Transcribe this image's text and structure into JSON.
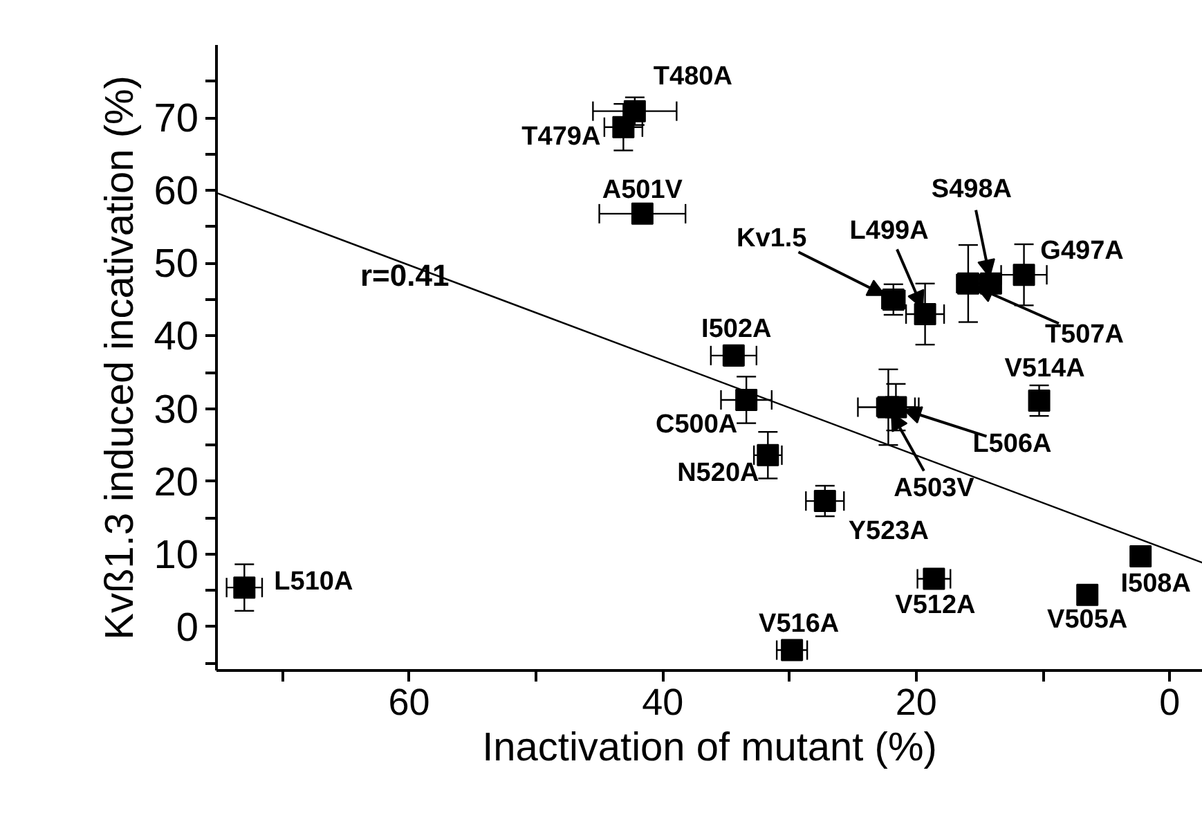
{
  "chart_data": {
    "type": "scatter",
    "xlabel": "Inactivation of mutant (%)",
    "ylabel": "Kvß1.3 induced incativation (%)",
    "xlim": [
      75.2,
      -2.6
    ],
    "ylim": [
      -6,
      80
    ],
    "xticks": [
      {
        "value": 70,
        "label": null
      },
      60,
      {
        "value": 50,
        "label": null
      },
      40,
      {
        "value": 30,
        "label": null
      },
      20,
      {
        "value": 10,
        "label": null
      },
      0
    ],
    "yticks": [
      {
        "value": -5,
        "label": null
      },
      0,
      {
        "value": 5,
        "label": null
      },
      10,
      {
        "value": 15,
        "label": null
      },
      20,
      {
        "value": 25,
        "label": null
      },
      30,
      {
        "value": 35,
        "label": null
      },
      40,
      {
        "value": 45,
        "label": null
      },
      50,
      {
        "value": 55,
        "label": null
      },
      60,
      {
        "value": 65,
        "label": null
      },
      70,
      {
        "value": 75,
        "label": null
      }
    ],
    "grid": false,
    "marker": "square",
    "series": [
      {
        "color": "#000000",
        "x": [
          42.2,
          43.1,
          41.6,
          34.4,
          33.4,
          21.8,
          19.3,
          14.1,
          15.9,
          11.5,
          10.3,
          22.2,
          21.6,
          31.7,
          27.2,
          18.6,
          2.3,
          6.5,
          29.8,
          73.0
        ],
        "values": [
          70.9,
          68.7,
          56.8,
          37.3,
          31.2,
          45.0,
          43.0,
          47.2,
          47.2,
          48.4,
          31.1,
          30.2,
          30.2,
          23.6,
          17.3,
          6.6,
          9.7,
          4.4,
          -3.2,
          5.4
        ],
        "errors": [
          1.9,
          3.2,
          null,
          1.4,
          3.2,
          2.1,
          4.2,
          null,
          5.3,
          4.2,
          2.1,
          5.2,
          3.2,
          3.2,
          2.1,
          null,
          null,
          null,
          null,
          3.2
        ],
        "xerrors": [
          3.3,
          1.5,
          3.4,
          1.8,
          2.0,
          0.9,
          1.5,
          0.5,
          0.9,
          1.8,
          null,
          2.4,
          1.5,
          1.1,
          1.5,
          1.3,
          null,
          null,
          1.2,
          1.4
        ]
      },
      {
        "type": "line",
        "color": "#000000",
        "x": [
          75.1,
          -2.6
        ],
        "values": [
          59.6,
          8.8
        ],
        "line_style": "solid",
        "marker": "none"
      }
    ],
    "annotations": [
      {
        "text": "T480A",
        "x": 42.2,
        "y": 70.9
      },
      {
        "text": "T479A",
        "x": 43.1,
        "y": 68.7
      },
      {
        "text": "A501V",
        "x": 41.6,
        "y": 56.8
      },
      {
        "text": "I502A",
        "x": 34.4,
        "y": 37.3
      },
      {
        "text": "C500A",
        "x": 33.4,
        "y": 31.2
      },
      {
        "text": "Kv1.5",
        "x": 21.8,
        "y": 45.0
      },
      {
        "text": "L499A",
        "x": 19.3,
        "y": 43.0
      },
      {
        "text": "S498A",
        "x": 14.1,
        "y": 47.2
      },
      {
        "text": "T507A",
        "x": 15.9,
        "y": 47.2
      },
      {
        "text": "G497A",
        "x": 11.5,
        "y": 48.4
      },
      {
        "text": "V514A",
        "x": 10.3,
        "y": 31.1
      },
      {
        "text": "A503V",
        "x": 22.2,
        "y": 30.2
      },
      {
        "text": "L506A",
        "x": 21.6,
        "y": 30.2
      },
      {
        "text": "N520A",
        "x": 31.7,
        "y": 23.6
      },
      {
        "text": "Y523A",
        "x": 27.2,
        "y": 17.3
      },
      {
        "text": "V512A",
        "x": 18.6,
        "y": 6.6
      },
      {
        "text": "I508A",
        "x": 2.3,
        "y": 9.7
      },
      {
        "text": "V505A",
        "x": 6.5,
        "y": 4.4
      },
      {
        "text": "V516A",
        "x": 29.8,
        "y": -3.2
      },
      {
        "text": "L510A",
        "x": 73.0,
        "y": 5.4
      },
      "r=0.41"
    ]
  }
}
